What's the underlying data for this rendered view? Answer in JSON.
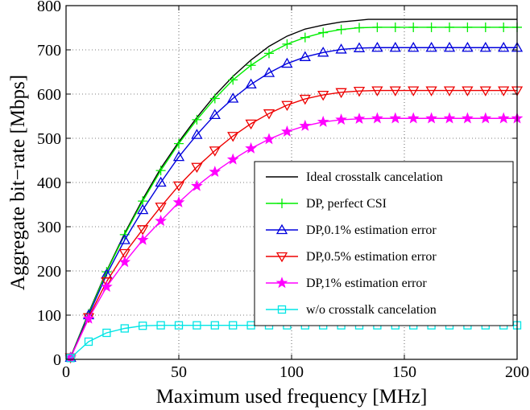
{
  "chart_data": {
    "type": "line",
    "xlabel": "Maximum used frequency [MHz]",
    "ylabel": "Aggregate bit−rate [Mbps]",
    "xlim": [
      0,
      200
    ],
    "ylim": [
      0,
      800
    ],
    "xticks": [
      0,
      50,
      100,
      150,
      200
    ],
    "yticks": [
      0,
      100,
      200,
      300,
      400,
      500,
      600,
      700,
      800
    ],
    "grid": true,
    "legend_position": "bottom-right",
    "series": [
      {
        "name": "Ideal crosstalk cancelation",
        "color": "#000000",
        "marker": "none",
        "x": [
          2,
          10,
          18,
          26,
          34,
          42,
          50,
          58,
          66,
          74,
          82,
          90,
          98,
          106,
          114,
          122,
          130,
          134,
          140,
          150,
          160,
          170,
          180,
          190,
          200
        ],
        "y": [
          5,
          105,
          200,
          285,
          362,
          432,
          492,
          547,
          597,
          640,
          677,
          708,
          731,
          747,
          756,
          763,
          767,
          769,
          769,
          769,
          769,
          769,
          769,
          769,
          769
        ]
      },
      {
        "name": "DP, perfect CSI",
        "color": "#00ee00",
        "marker": "plus",
        "x": [
          2,
          10,
          18,
          26,
          34,
          42,
          50,
          58,
          66,
          74,
          82,
          90,
          98,
          106,
          114,
          122,
          130,
          138,
          146,
          154,
          162,
          170,
          178,
          186,
          194,
          200
        ],
        "y": [
          5,
          103,
          198,
          282,
          358,
          427,
          488,
          542,
          590,
          632,
          665,
          692,
          713,
          728,
          739,
          746,
          750,
          751,
          751,
          751,
          751,
          751,
          751,
          751,
          751,
          751
        ]
      },
      {
        "name": "DP,0.1% estimation error",
        "color": "#0000dd",
        "marker": "triangle-up",
        "x": [
          2,
          10,
          18,
          26,
          34,
          42,
          50,
          58,
          66,
          74,
          82,
          90,
          98,
          106,
          114,
          122,
          130,
          138,
          146,
          154,
          162,
          170,
          178,
          186,
          194,
          200
        ],
        "y": [
          4,
          100,
          192,
          270,
          338,
          400,
          458,
          508,
          553,
          590,
          622,
          648,
          669,
          684,
          694,
          701,
          704,
          705,
          705,
          705,
          705,
          705,
          705,
          705,
          705,
          705
        ]
      },
      {
        "name": "DP,0.5% estimation error",
        "color": "#ee0000",
        "marker": "triangle-down",
        "x": [
          2,
          10,
          18,
          26,
          34,
          42,
          50,
          58,
          66,
          74,
          82,
          90,
          98,
          106,
          114,
          122,
          130,
          138,
          146,
          154,
          162,
          170,
          178,
          186,
          194,
          200
        ],
        "y": [
          4,
          95,
          176,
          240,
          294,
          345,
          393,
          435,
          472,
          505,
          533,
          556,
          575,
          589,
          598,
          604,
          607,
          608,
          608,
          608,
          608,
          608,
          608,
          608,
          608,
          608
        ]
      },
      {
        "name": "DP,1% estimation error",
        "color": "#ff00ff",
        "marker": "star",
        "x": [
          2,
          10,
          18,
          26,
          34,
          42,
          50,
          58,
          66,
          74,
          82,
          90,
          98,
          106,
          114,
          122,
          130,
          138,
          146,
          154,
          162,
          170,
          178,
          186,
          194,
          200
        ],
        "y": [
          4,
          92,
          164,
          220,
          270,
          313,
          355,
          392,
          424,
          452,
          477,
          498,
          515,
          528,
          537,
          542,
          544,
          545,
          545,
          545,
          545,
          545,
          545,
          545,
          545,
          545
        ]
      },
      {
        "name": "w/o crosstalk cancelation",
        "color": "#00e5e5",
        "marker": "square",
        "x": [
          2,
          10,
          18,
          26,
          34,
          42,
          50,
          58,
          66,
          74,
          82,
          90,
          98,
          106,
          114,
          122,
          130,
          138,
          146,
          154,
          162,
          170,
          178,
          186,
          194,
          200
        ],
        "y": [
          3,
          40,
          60,
          70,
          76,
          77,
          77,
          77,
          77,
          77,
          77,
          77,
          77,
          77,
          77,
          77,
          77,
          77,
          77,
          77,
          77,
          77,
          77,
          77,
          77,
          77
        ]
      }
    ]
  }
}
